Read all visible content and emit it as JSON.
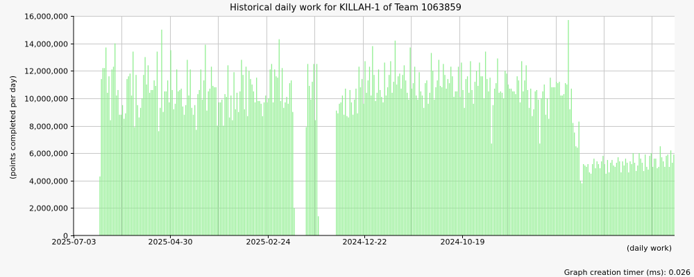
{
  "chart_data": {
    "type": "bar",
    "title": "Historical daily work for KILLAH-1 of Team 1063859",
    "ylabel": "(points completed per day)",
    "xlabel": "(daily work)",
    "ylim": [
      0,
      16000000
    ],
    "yticks": [
      0,
      2000000,
      4000000,
      6000000,
      8000000,
      10000000,
      12000000,
      14000000,
      16000000
    ],
    "ytick_labels": [
      "0",
      "2,000,000",
      "4,000,000",
      "6,000,000",
      "8,000,000",
      "10,000,000",
      "12,000,000",
      "14,000,000",
      "16,000,000"
    ],
    "x_order": "newest date on the left, oldest on the right",
    "xtick_labels": [
      {
        "label": "2025-07-03",
        "index": 0
      },
      {
        "label": "2025-04-30",
        "index": 64
      },
      {
        "label": "2025-02-24",
        "index": 129
      },
      {
        "label": "2024-12-22",
        "index": 193
      },
      {
        "label": "2024-10-19",
        "index": 258
      }
    ],
    "grid": true,
    "bar_color": "#90ee90",
    "series": [
      {
        "values": [
          0,
          0,
          0,
          0,
          0,
          0,
          0,
          0,
          0,
          0,
          0,
          0,
          0,
          0,
          0,
          0,
          0,
          4300000,
          11400000,
          12200000,
          12200000,
          13700000,
          10400000,
          11600000,
          8400000,
          12100000,
          12300000,
          14000000,
          10200000,
          10600000,
          8800000,
          8800000,
          9500000,
          8500000,
          8900000,
          11400000,
          11600000,
          11800000,
          10200000,
          13400000,
          7900000,
          11700000,
          9500000,
          8600000,
          9300000,
          10000000,
          11700000,
          13000000,
          11000000,
          12400000,
          10400000,
          10600000,
          10600000,
          11300000,
          10900000,
          13400000,
          7600000,
          9300000,
          15000000,
          9000000,
          10500000,
          10500000,
          11300000,
          9700000,
          13500000,
          10600000,
          9200000,
          9600000,
          12100000,
          10500000,
          10600000,
          10700000,
          9400000,
          8800000,
          9500000,
          12800000,
          10200000,
          12100000,
          9300000,
          8800000,
          9500000,
          7700000,
          10300000,
          10600000,
          12100000,
          9900000,
          11300000,
          13900000,
          9100000,
          10500000,
          10700000,
          12300000,
          10900000,
          10800000,
          10800000,
          8000000,
          9700000,
          9700000,
          9900000,
          8000000,
          10300000,
          10100000,
          12400000,
          8600000,
          10200000,
          8400000,
          11900000,
          9200000,
          10400000,
          9000000,
          10500000,
          12800000,
          11700000,
          9200000,
          12300000,
          8700000,
          12000000,
          11400000,
          11000000,
          10500000,
          9700000,
          11500000,
          9800000,
          9800000,
          9600000,
          8700000,
          9700000,
          10200000,
          9700000,
          10000000,
          12100000,
          12500000,
          9700000,
          12100000,
          11600000,
          11500000,
          14300000,
          9800000,
          12200000,
          9300000,
          9700000,
          10100000,
          9600000,
          11100000,
          11300000,
          9000000,
          2000000,
          0,
          0,
          0,
          0,
          0,
          0,
          0,
          7900000,
          12500000,
          10900000,
          9900000,
          11200000,
          12500000,
          8400000,
          12500000,
          1400000,
          0,
          0,
          0,
          0,
          0,
          0,
          0,
          0,
          0,
          0,
          0,
          9100000,
          8900000,
          9600000,
          9700000,
          10200000,
          8800000,
          10700000,
          8700000,
          8600000,
          10600000,
          9700000,
          8800000,
          9900000,
          10700000,
          8900000,
          12300000,
          10800000,
          11400000,
          9600000,
          12700000,
          10400000,
          11300000,
          12300000,
          10200000,
          13800000,
          11700000,
          9800000,
          10400000,
          12100000,
          10600000,
          10100000,
          9700000,
          12600000,
          10200000,
          10800000,
          11700000,
          12700000,
          10400000,
          11200000,
          14200000,
          11000000,
          11600000,
          11800000,
          10700000,
          11700000,
          12400000,
          11300000,
          10400000,
          9900000,
          13700000,
          10700000,
          11100000,
          12300000,
          10200000,
          9900000,
          11900000,
          10500000,
          10200000,
          9300000,
          11100000,
          11300000,
          9600000,
          10400000,
          13300000,
          12000000,
          9900000,
          10800000,
          11300000,
          12800000,
          10900000,
          10800000,
          12500000,
          11700000,
          10700000,
          11400000,
          11100000,
          12300000,
          11600000,
          10100000,
          10500000,
          10500000,
          12300000,
          10100000,
          12600000,
          10600000,
          9300000,
          11400000,
          11600000,
          10400000,
          12700000,
          10600000,
          9600000,
          11200000,
          12000000,
          10900000,
          12600000,
          11600000,
          11600000,
          10000000,
          13400000,
          11400000,
          10500000,
          11500000,
          6700000,
          9500000,
          10700000,
          11100000,
          12900000,
          10400000,
          10500000,
          10400000,
          10000000,
          12000000,
          11800000,
          11000000,
          10700000,
          10700000,
          10500000,
          10500000,
          10300000,
          11600000,
          11300000,
          9700000,
          12700000,
          10500000,
          11300000,
          12400000,
          10600000,
          9300000,
          10700000,
          8700000,
          9200000,
          10500000,
          10600000,
          9900000,
          6700000,
          10000000,
          10500000,
          11000000,
          8800000,
          10000000,
          8500000,
          11500000,
          10800000,
          10800000,
          10800000,
          11200000,
          11100000,
          11200000,
          10200000,
          10200000,
          10300000,
          11100000,
          11000000,
          15700000,
          9200000,
          10700000,
          8200000,
          7500000,
          6500000,
          6400000,
          8300000,
          4000000,
          3800000,
          5200000,
          5100000,
          5000000,
          5200000,
          4600000,
          4500000,
          5200000,
          5600000,
          4900000,
          5400000,
          5200000,
          4900000,
          5400000,
          5800000,
          5200000,
          4500000,
          5500000,
          4600000,
          5300000,
          5500000,
          5100000,
          5000000,
          5300000,
          5700000,
          5400000,
          4600000,
          5400000,
          5100000,
          5600000,
          5300000,
          4600000,
          5400000,
          5200000,
          6000000,
          5300000,
          4700000,
          5100000,
          6000000,
          5600000,
          5300000,
          4700000,
          5900000,
          5000000,
          4800000,
          5800000,
          6000000,
          5000000,
          5600000,
          5600000,
          4900000,
          5000000,
          6500000,
          5700000,
          5400000,
          5000000,
          5800000,
          5900000,
          5000000,
          6200000,
          5300000,
          5900000
        ]
      }
    ]
  },
  "footer": {
    "timer_text": "Graph creation timer (ms): 0.026"
  }
}
